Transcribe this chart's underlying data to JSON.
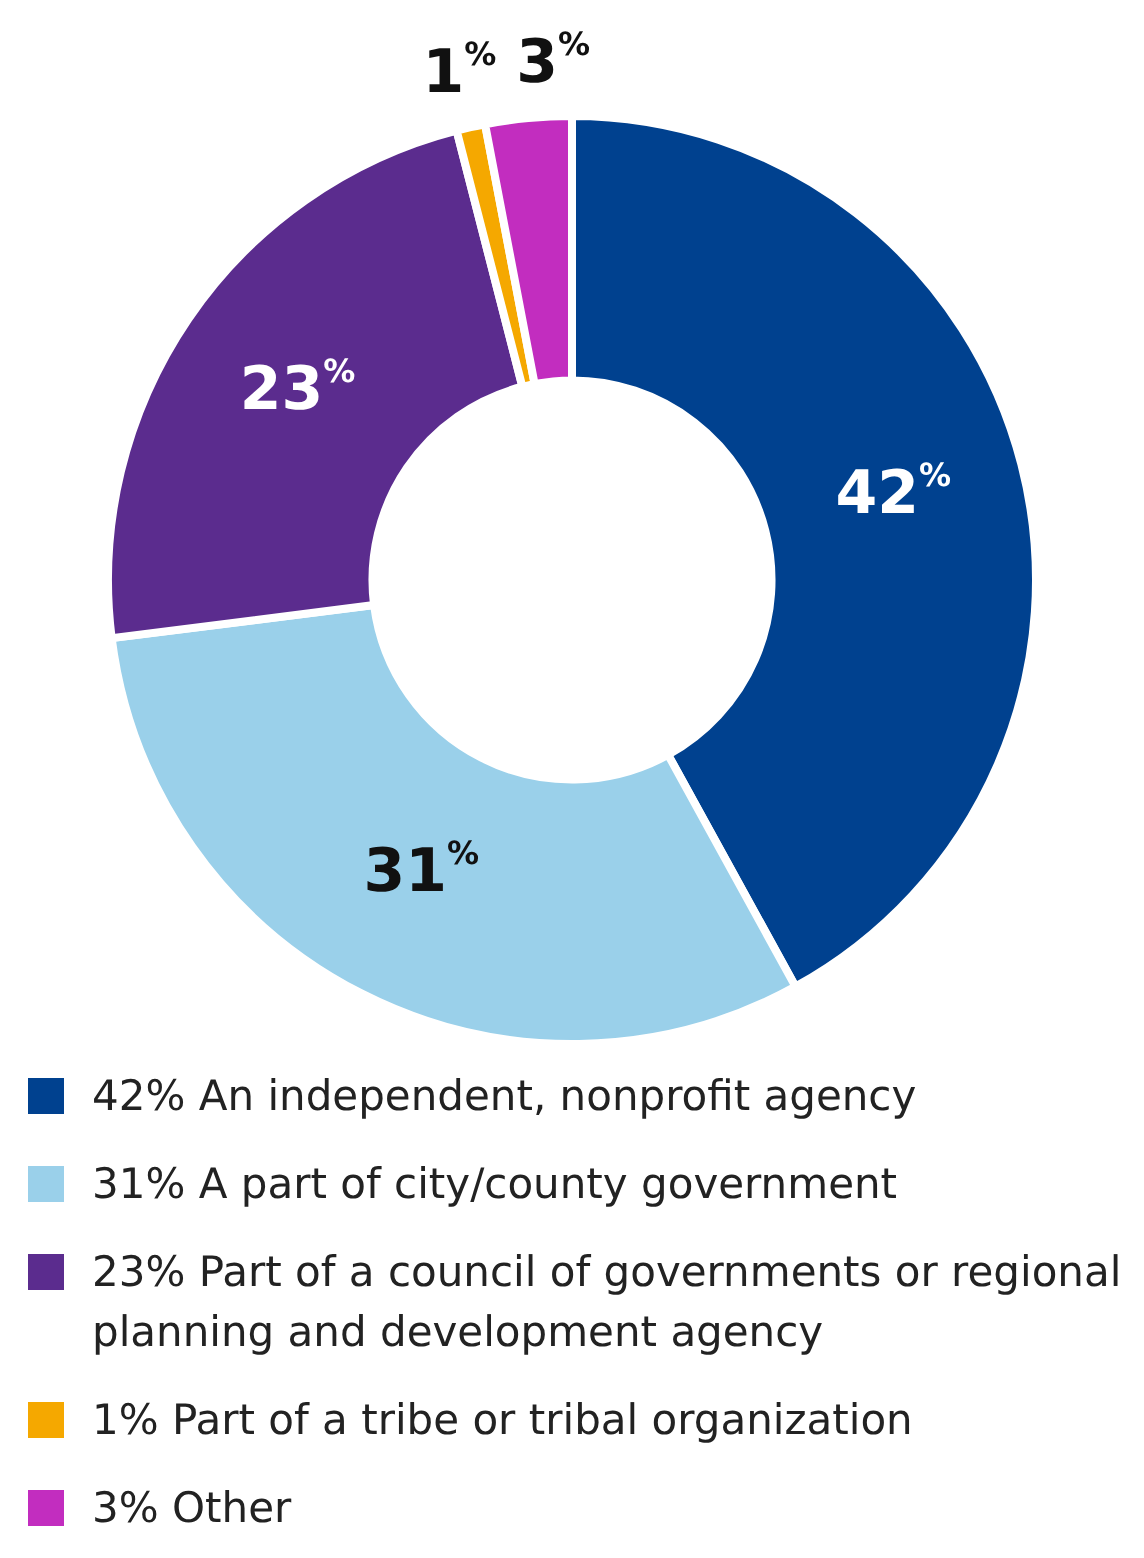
{
  "chart_data": {
    "type": "donut",
    "categories": [
      "42% An independent, nonprofit agency",
      "31% A part of city/county government",
      "23% Part of a council of governments or regional planning and development agency",
      "1% Part of a tribe or tribal organization",
      "3% Other"
    ],
    "values": [
      42,
      31,
      23,
      1,
      3
    ],
    "colors": [
      "#00418f",
      "#9ad0ea",
      "#5b2c8e",
      "#f5a800",
      "#c22dbf"
    ],
    "value_labels": [
      "42%",
      "31%",
      "23%",
      "1%",
      "3%"
    ],
    "legend": "bottom"
  }
}
